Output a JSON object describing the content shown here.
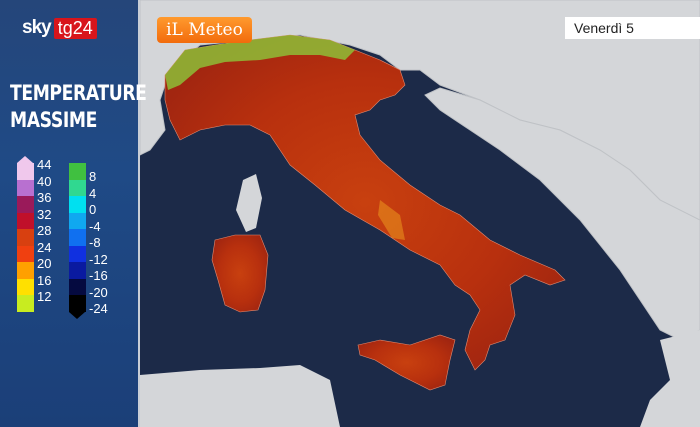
{
  "brand": {
    "sky": "sky",
    "tg": "tg24"
  },
  "title": {
    "line1": "TEMPERATURE",
    "line2": "MASSIME"
  },
  "provider_logo": "iLMeteo",
  "provider_logo_text": "iL Meteo",
  "day_selector": {
    "value": "Venerdì 5"
  },
  "legend_warm": [
    {
      "label": "44",
      "color": "#f0c8ec"
    },
    {
      "label": "40",
      "color": "#b870d0"
    },
    {
      "label": "36",
      "color": "#9a1a5a"
    },
    {
      "label": "32",
      "color": "#c0102a"
    },
    {
      "label": "28",
      "color": "#d84010"
    },
    {
      "label": "24",
      "color": "#f04010"
    },
    {
      "label": "20",
      "color": "#ffa000"
    },
    {
      "label": "16",
      "color": "#ffe000"
    },
    {
      "label": "12",
      "color": "#c8ec20"
    }
  ],
  "legend_cold": [
    {
      "label": "8",
      "color": "#40c040"
    },
    {
      "label": "4",
      "color": "#30d890"
    },
    {
      "label": "0",
      "color": "#00e0f0"
    },
    {
      "label": "-4",
      "color": "#10a8f0"
    },
    {
      "label": "-8",
      "color": "#1070f0"
    },
    {
      "label": "-12",
      "color": "#1030e0"
    },
    {
      "label": "-16",
      "color": "#0a1aa0"
    },
    {
      "label": "-20",
      "color": "#050a40"
    },
    {
      "label": "-24",
      "color": "#000000"
    }
  ],
  "colors": {
    "sea": "#1c2a48",
    "foreign_land": "#d4d6d9",
    "italy_heat": "#c2350e"
  }
}
